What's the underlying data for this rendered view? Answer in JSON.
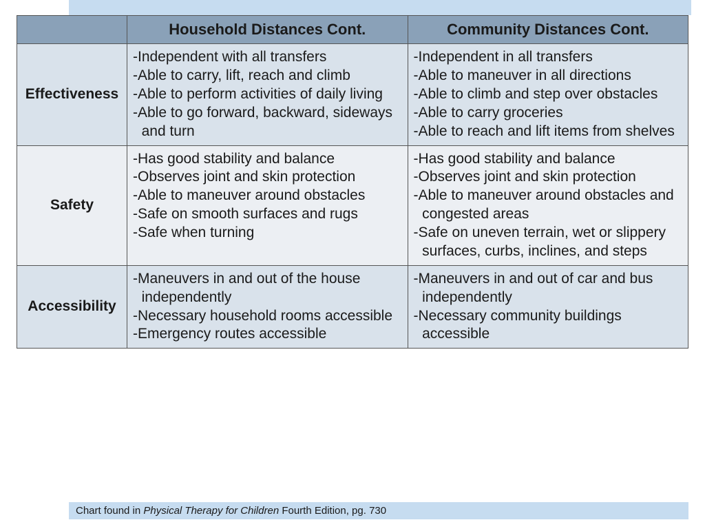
{
  "colors": {
    "header_bg": "#8aa1b8",
    "band_a": "#d9e2eb",
    "band_b": "#eceff3",
    "banner": "#c6dcf0",
    "border": "#555555",
    "text": "#1a1a1a"
  },
  "columns": [
    "",
    "Household  Distances Cont.",
    "Community Distances Cont."
  ],
  "rows": [
    {
      "label": "Effectiveness",
      "band": "a",
      "household": [
        "-Independent with all transfers",
        "-Able to carry, lift, reach and climb",
        "-Able to perform activities of daily living",
        "-Able to go forward, backward, sideways and turn"
      ],
      "community": [
        "-Independent in all transfers",
        "-Able to maneuver in all directions",
        "-Able to climb and step over obstacles",
        "-Able to carry groceries",
        "-Able to reach and lift items from shelves"
      ]
    },
    {
      "label": "Safety",
      "band": "b",
      "household": [
        "-Has good stability and balance",
        "-Observes joint and skin protection",
        "-Able to maneuver around obstacles",
        "-Safe on smooth surfaces and rugs",
        "-Safe when turning"
      ],
      "community": [
        "-Has good stability and balance",
        "-Observes joint and skin protection",
        "-Able to maneuver around obstacles and congested areas",
        "-Safe on uneven terrain, wet or slippery surfaces, curbs, inclines, and steps"
      ]
    },
    {
      "label": "Accessibility",
      "band": "a",
      "household": [
        "-Maneuvers in and out of the house independently",
        "-Necessary household rooms accessible",
        "-Emergency routes accessible"
      ],
      "community": [
        "-Maneuvers in and out of car and bus independently",
        "-Necessary community buildings accessible"
      ]
    }
  ],
  "caption": {
    "prefix": "Chart found in ",
    "italic": "Physical Therapy for Children",
    "suffix": " Fourth Edition, pg. 730"
  }
}
